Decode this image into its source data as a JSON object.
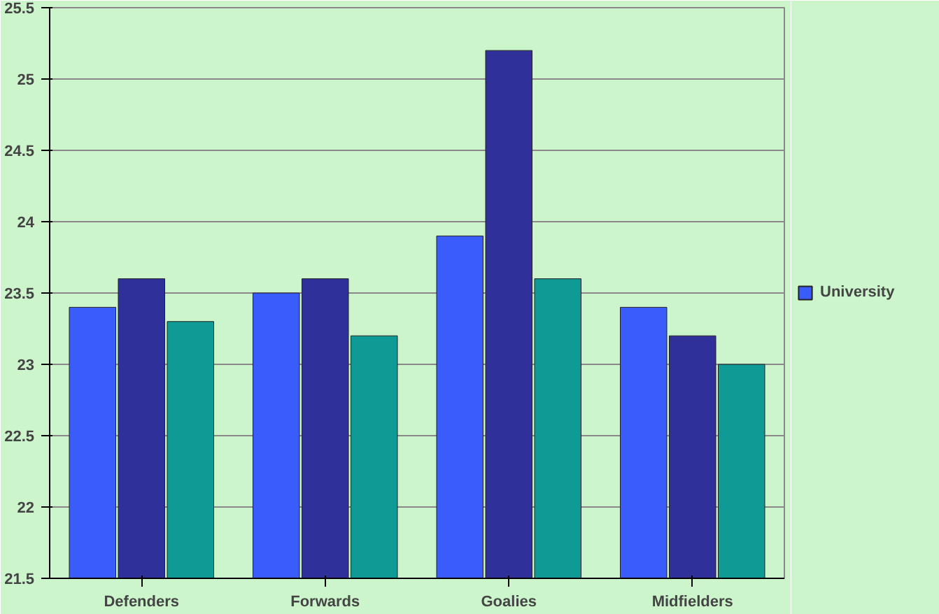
{
  "chart_data": {
    "type": "bar",
    "categories": [
      "Defenders",
      "Forwards",
      "Goalies",
      "Midfielders"
    ],
    "series": [
      {
        "name": "University",
        "color": "#3a5cfa",
        "values": [
          23.4,
          23.5,
          23.9,
          23.4
        ]
      },
      {
        "color": "#30309a",
        "values": [
          23.6,
          23.6,
          25.2,
          23.2
        ]
      },
      {
        "color": "#109a96",
        "values": [
          23.3,
          23.2,
          23.6,
          23.0
        ]
      }
    ],
    "ylim": [
      21.5,
      25.5
    ],
    "yticks": [
      21.5,
      22,
      22.5,
      23,
      23.5,
      24,
      24.5,
      25,
      25.5
    ],
    "grid": "y",
    "legend": "right"
  }
}
